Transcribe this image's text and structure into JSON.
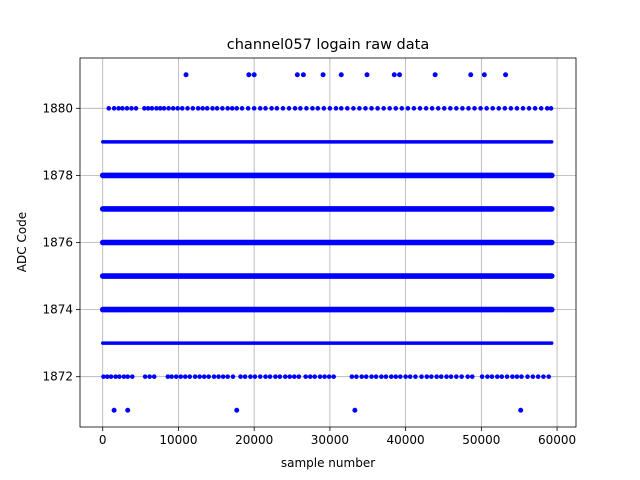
{
  "chart_data": {
    "type": "scatter",
    "title": "channel057 logain raw data",
    "xlabel": "sample number",
    "ylabel": "ADC Code",
    "xlim": [
      -3000,
      62500
    ],
    "ylim": [
      1870.5,
      1881.5
    ],
    "x_ticks": [
      0,
      10000,
      20000,
      30000,
      40000,
      50000,
      60000
    ],
    "y_ticks": [
      1872,
      1874,
      1876,
      1878,
      1880
    ],
    "grid": true,
    "marker_color": "#0000ff",
    "x_range": [
      0,
      59300
    ],
    "dense_levels": [
      1873,
      1874,
      1875,
      1876,
      1877,
      1878,
      1879
    ],
    "sparse_levels": {
      "1880": [
        800,
        1500,
        2100,
        2600,
        3200,
        3800,
        4400,
        5500,
        6000,
        6500,
        7100,
        7600,
        8100,
        8700,
        9300,
        9900,
        10500,
        11200,
        11900,
        12600,
        13200,
        13800,
        14500,
        15100,
        15800,
        16500,
        17100,
        17700,
        18400,
        19200,
        20000,
        20800,
        21500,
        22300,
        23000,
        23800,
        24600,
        25400,
        26100,
        26900,
        27700,
        28400,
        29200,
        30000,
        30800,
        31500,
        32300,
        33100,
        33900,
        34700,
        35500,
        36300,
        37100,
        37900,
        38700,
        39500,
        40300,
        41100,
        41900,
        42700,
        43500,
        44300,
        45100,
        45900,
        46700,
        47500,
        48300,
        49100,
        49900,
        50700,
        51500,
        52300,
        53100,
        53900,
        54700,
        55500,
        56300,
        57100,
        57900,
        58700,
        59200
      ],
      "1872": [
        100,
        600,
        1100,
        1700,
        2200,
        2800,
        3300,
        3900,
        5600,
        6200,
        6800,
        8600,
        9100,
        9700,
        10300,
        10900,
        11500,
        12200,
        12800,
        13400,
        14000,
        14700,
        15300,
        15900,
        16500,
        17200,
        18200,
        18800,
        19500,
        20100,
        20800,
        21500,
        22100,
        22800,
        23400,
        24100,
        24700,
        25300,
        25900,
        26800,
        27400,
        28000,
        28700,
        29300,
        29900,
        30500,
        32900,
        33500,
        34200,
        34800,
        35500,
        36100,
        36800,
        37400,
        38100,
        38700,
        39300,
        40000,
        40600,
        41300,
        42100,
        42800,
        43400,
        44100,
        44700,
        45400,
        46000,
        46700,
        47400,
        48200,
        48800,
        50100,
        50800,
        51400,
        52100,
        52700,
        53400,
        54100,
        54700,
        55300,
        56100,
        56800,
        57500,
        58200,
        58900
      ]
    },
    "outliers": [
      {
        "x": 11000,
        "y": 1881
      },
      {
        "x": 19300,
        "y": 1881
      },
      {
        "x": 20000,
        "y": 1881
      },
      {
        "x": 25700,
        "y": 1881
      },
      {
        "x": 26500,
        "y": 1881
      },
      {
        "x": 29100,
        "y": 1881
      },
      {
        "x": 31500,
        "y": 1881
      },
      {
        "x": 34900,
        "y": 1881
      },
      {
        "x": 38500,
        "y": 1881
      },
      {
        "x": 39200,
        "y": 1881
      },
      {
        "x": 43900,
        "y": 1881
      },
      {
        "x": 48600,
        "y": 1881
      },
      {
        "x": 50400,
        "y": 1881
      },
      {
        "x": 53200,
        "y": 1881
      },
      {
        "x": 1500,
        "y": 1871
      },
      {
        "x": 3300,
        "y": 1871
      },
      {
        "x": 17700,
        "y": 1871
      },
      {
        "x": 33300,
        "y": 1871
      },
      {
        "x": 55200,
        "y": 1871
      }
    ]
  }
}
